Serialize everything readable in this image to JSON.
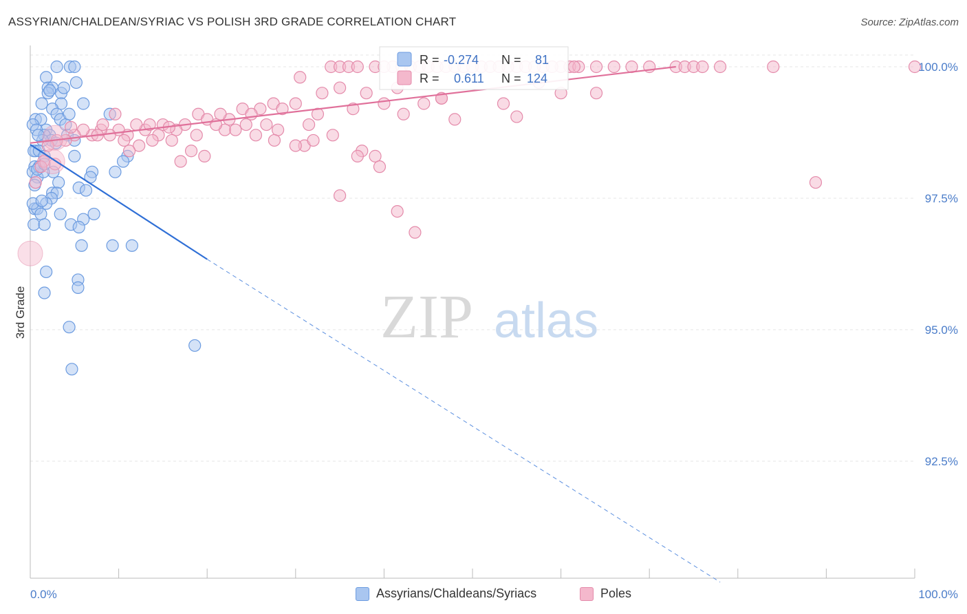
{
  "title": "ASSYRIAN/CHALDEAN/SYRIAC VS POLISH 3RD GRADE CORRELATION CHART",
  "source": "Source: ZipAtlas.com",
  "watermark": {
    "zip": "ZIP",
    "atlas": "atlas"
  },
  "chart_data": {
    "type": "scatter",
    "xlabel": "",
    "ylabel": "3rd Grade",
    "xlim": [
      0,
      100
    ],
    "ylim": [
      90.2,
      100.5
    ],
    "x_tick_labels": [
      {
        "value": 0,
        "label": "0.0%"
      },
      {
        "value": 100,
        "label": "100.0%"
      }
    ],
    "y_tick_labels": [
      {
        "value": 100.0,
        "label": "100.0%"
      },
      {
        "value": 97.5,
        "label": "97.5%"
      },
      {
        "value": 95.0,
        "label": "95.0%"
      },
      {
        "value": 92.5,
        "label": "92.5%"
      }
    ],
    "grid": true,
    "legend_position": "top-center",
    "series": [
      {
        "name": "Assyrians/Chaldeans/Syriacs",
        "color": "#6b9be0",
        "fill": "#a9c6f0",
        "stats": {
          "r_label": "R =",
          "r_value": "-0.274",
          "n_label": "N =",
          "n_value": "81"
        },
        "trend": {
          "x": [
            0,
            20
          ],
          "y": [
            98.52,
            96.34
          ],
          "dashed_to": {
            "x": 78,
            "y": 90.2
          }
        },
        "points": [
          [
            3,
            100
          ],
          [
            4.5,
            100
          ],
          [
            5,
            100
          ],
          [
            1.8,
            99.8
          ],
          [
            2,
            99.6
          ],
          [
            2.5,
            99.6
          ],
          [
            3.5,
            99.5
          ],
          [
            3.8,
            99.6
          ],
          [
            5.2,
            99.7
          ],
          [
            6,
            99.3
          ],
          [
            2,
            99.5
          ],
          [
            1.3,
            99.3
          ],
          [
            3.5,
            99.3
          ],
          [
            2.5,
            99.2
          ],
          [
            3,
            99.1
          ],
          [
            9,
            99.1
          ],
          [
            0.6,
            99.0
          ],
          [
            1.2,
            99.0
          ],
          [
            3.4,
            99.0
          ],
          [
            4,
            98.9
          ],
          [
            0.3,
            98.9
          ],
          [
            1.8,
            98.8
          ],
          [
            0.7,
            98.8
          ],
          [
            2.2,
            98.7
          ],
          [
            1.6,
            98.7
          ],
          [
            4.2,
            98.7
          ],
          [
            2.4,
            98.6
          ],
          [
            1.4,
            98.6
          ],
          [
            5,
            98.6
          ],
          [
            0.6,
            98.4
          ],
          [
            0.4,
            98.4
          ],
          [
            1,
            98.4
          ],
          [
            5,
            98.3
          ],
          [
            11,
            98.3
          ],
          [
            1.6,
            98.3
          ],
          [
            10.5,
            98.2
          ],
          [
            0.5,
            98.1
          ],
          [
            2.6,
            98.0
          ],
          [
            7,
            98.0
          ],
          [
            9.6,
            98.0
          ],
          [
            0.3,
            98.0
          ],
          [
            0.8,
            97.9
          ],
          [
            1.5,
            98.0
          ],
          [
            6.8,
            97.9
          ],
          [
            3.2,
            97.8
          ],
          [
            5.5,
            97.7
          ],
          [
            2.5,
            97.6
          ],
          [
            3,
            97.6
          ],
          [
            2.4,
            97.5
          ],
          [
            1.8,
            97.4
          ],
          [
            0.5,
            97.3
          ],
          [
            0.8,
            97.3
          ],
          [
            1.2,
            97.2
          ],
          [
            3.4,
            97.2
          ],
          [
            7.2,
            97.2
          ],
          [
            6,
            97.1
          ],
          [
            0.4,
            97.0
          ],
          [
            1.6,
            97.0
          ],
          [
            4.6,
            97.0
          ],
          [
            5.5,
            96.95
          ],
          [
            0.3,
            97.4
          ],
          [
            9.3,
            96.6
          ],
          [
            11.5,
            96.6
          ],
          [
            5.8,
            96.6
          ],
          [
            1.8,
            96.1
          ],
          [
            5.4,
            95.95
          ],
          [
            5.4,
            95.8
          ],
          [
            1.6,
            95.7
          ],
          [
            4.4,
            95.05
          ],
          [
            18.6,
            94.7
          ],
          [
            4.7,
            94.25
          ],
          [
            1,
            98.1
          ],
          [
            0.8,
            98.05
          ],
          [
            1.6,
            98.15
          ],
          [
            2.2,
            99.55
          ],
          [
            4.4,
            99.1
          ],
          [
            0.9,
            98.7
          ],
          [
            2.9,
            98.55
          ],
          [
            0.5,
            97.75
          ],
          [
            1.3,
            97.45
          ],
          [
            6.3,
            97.65
          ]
        ],
        "big_points": []
      },
      {
        "name": "Poles",
        "color": "#e48aaa",
        "fill": "#f4b8cc",
        "stats": {
          "r_label": "R =",
          "r_value": "0.611",
          "n_label": "N =",
          "n_value": "124"
        },
        "trend": {
          "x": [
            0,
            73
          ],
          "y": [
            98.55,
            100.0
          ]
        },
        "points": [
          [
            34,
            100
          ],
          [
            35,
            100
          ],
          [
            36,
            100
          ],
          [
            37,
            100
          ],
          [
            39,
            100
          ],
          [
            41,
            100
          ],
          [
            42,
            100
          ],
          [
            43,
            100
          ],
          [
            44,
            100
          ],
          [
            45,
            100
          ],
          [
            46,
            100
          ],
          [
            47,
            100
          ],
          [
            48,
            100
          ],
          [
            49,
            100
          ],
          [
            51,
            100
          ],
          [
            52,
            100
          ],
          [
            53,
            100
          ],
          [
            55,
            100
          ],
          [
            56,
            100
          ],
          [
            58,
            100
          ],
          [
            60,
            100
          ],
          [
            61,
            100
          ],
          [
            62,
            100
          ],
          [
            64,
            100
          ],
          [
            66,
            100
          ],
          [
            68,
            100
          ],
          [
            70,
            100
          ],
          [
            73,
            100
          ],
          [
            74,
            100
          ],
          [
            75,
            100
          ],
          [
            76,
            100
          ],
          [
            78,
            100
          ],
          [
            84,
            100
          ],
          [
            100,
            100
          ],
          [
            61.5,
            100
          ],
          [
            59,
            100
          ],
          [
            57,
            100
          ],
          [
            54,
            100
          ],
          [
            50,
            100
          ],
          [
            40,
            100
          ],
          [
            30.5,
            99.8
          ],
          [
            41.5,
            99.6
          ],
          [
            33,
            99.5
          ],
          [
            35,
            99.6
          ],
          [
            38,
            99.5
          ],
          [
            46.5,
            99.4
          ],
          [
            27.5,
            99.3
          ],
          [
            28.5,
            99.2
          ],
          [
            30,
            99.3
          ],
          [
            32.5,
            99.1
          ],
          [
            26,
            99.2
          ],
          [
            24,
            99.2
          ],
          [
            22.5,
            99.0
          ],
          [
            21.5,
            99.1
          ],
          [
            19,
            99.1
          ],
          [
            20,
            99.0
          ],
          [
            17.5,
            98.9
          ],
          [
            16.5,
            98.8
          ],
          [
            15,
            98.9
          ],
          [
            13,
            98.8
          ],
          [
            12,
            98.9
          ],
          [
            11,
            98.7
          ],
          [
            10,
            98.8
          ],
          [
            9,
            98.7
          ],
          [
            8,
            98.8
          ],
          [
            7,
            98.7
          ],
          [
            6,
            98.8
          ],
          [
            5,
            98.7
          ],
          [
            4,
            98.6
          ],
          [
            3,
            98.6
          ],
          [
            2,
            98.5
          ],
          [
            1.5,
            98.2
          ],
          [
            1.2,
            98.1
          ],
          [
            2.8,
            98.15
          ],
          [
            0.6,
            97.8
          ],
          [
            14.5,
            98.7
          ],
          [
            13.8,
            98.6
          ],
          [
            12.3,
            98.5
          ],
          [
            11.2,
            98.4
          ],
          [
            17,
            98.2
          ],
          [
            18.2,
            98.4
          ],
          [
            22,
            98.8
          ],
          [
            23.2,
            98.8
          ],
          [
            24.4,
            98.9
          ],
          [
            25.5,
            98.7
          ],
          [
            25,
            99.1
          ],
          [
            26.7,
            98.9
          ],
          [
            28,
            98.8
          ],
          [
            31.5,
            98.9
          ],
          [
            31,
            98.5
          ],
          [
            32,
            98.6
          ],
          [
            34.2,
            98.7
          ],
          [
            37.5,
            98.4
          ],
          [
            37,
            98.3
          ],
          [
            39,
            98.3
          ],
          [
            39.5,
            98.1
          ],
          [
            30,
            98.5
          ],
          [
            27.6,
            98.6
          ],
          [
            36.5,
            99.2
          ],
          [
            40,
            99.3
          ],
          [
            42.2,
            99.1
          ],
          [
            46.5,
            99.4
          ],
          [
            53.5,
            99.3
          ],
          [
            55,
            99.05
          ],
          [
            57.5,
            99.7
          ],
          [
            60,
            99.5
          ],
          [
            64,
            99.5
          ],
          [
            88.8,
            97.8
          ],
          [
            41.5,
            97.25
          ],
          [
            35,
            97.55
          ],
          [
            43.5,
            96.85
          ],
          [
            13.5,
            98.9
          ],
          [
            9.6,
            99.1
          ],
          [
            8.2,
            98.9
          ],
          [
            19.7,
            98.3
          ],
          [
            4.6,
            98.85
          ],
          [
            16,
            98.6
          ],
          [
            7.6,
            98.7
          ],
          [
            10.6,
            98.6
          ],
          [
            18.8,
            98.7
          ],
          [
            21,
            98.9
          ],
          [
            15.7,
            98.85
          ],
          [
            44.5,
            99.3
          ],
          [
            48,
            99.0
          ]
        ],
        "big_points": [
          [
            0,
            96.45
          ],
          [
            2.5,
            98.2
          ],
          [
            2.8,
            98.65
          ]
        ]
      }
    ]
  }
}
